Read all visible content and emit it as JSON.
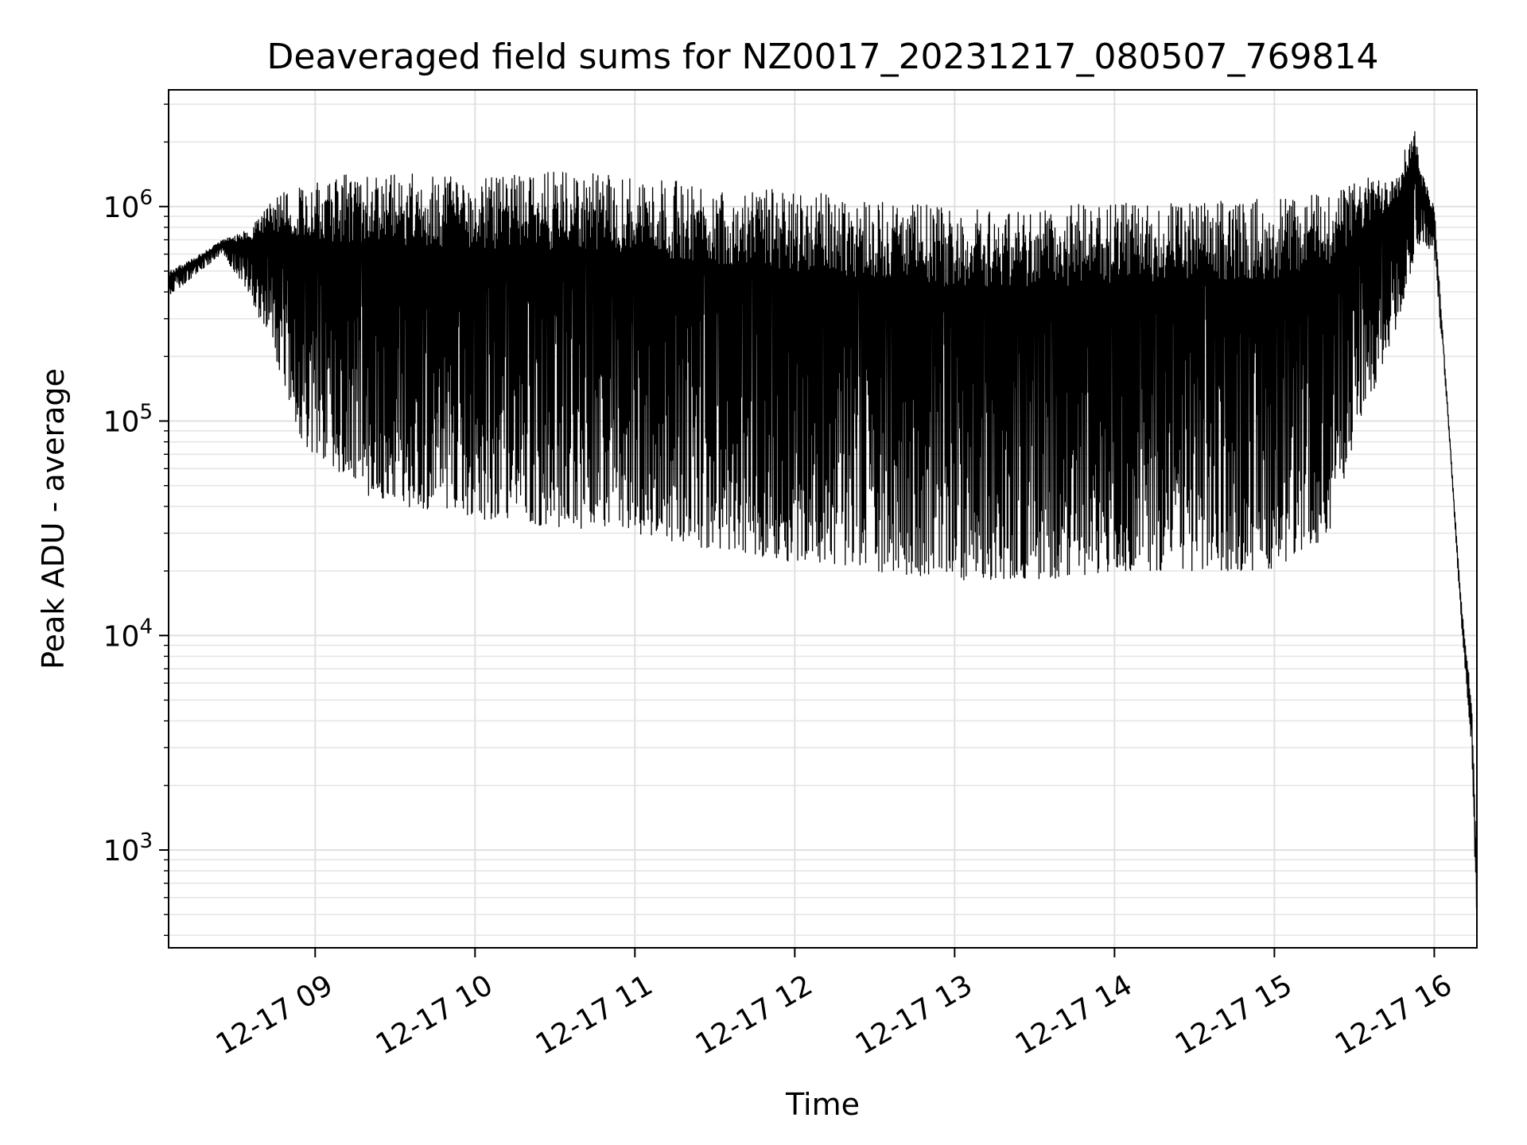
{
  "chart_data": {
    "type": "line",
    "title": "Deaveraged field sums for NZ0017_20231217_080507_769814",
    "xlabel": "Time",
    "ylabel": "Peak ADU - average",
    "y_scale": "log",
    "ylim": [
      350,
      3500000
    ],
    "xlim": [
      "2023-12-17 08:05",
      "2023-12-17 16:16"
    ],
    "x_ticks": [
      "2023-12-17 09:00",
      "2023-12-17 10:00",
      "2023-12-17 11:00",
      "2023-12-17 12:00",
      "2023-12-17 13:00",
      "2023-12-17 14:00",
      "2023-12-17 15:00",
      "2023-12-17 16:00"
    ],
    "x_tick_labels": [
      "12-17 09",
      "12-17 10",
      "12-17 11",
      "12-17 12",
      "12-17 13",
      "12-17 14",
      "12-17 15",
      "12-17 16"
    ],
    "y_ticks": [
      1000,
      10000,
      100000,
      1000000
    ],
    "y_tick_labels": [
      {
        "base": "10",
        "exp": "3"
      },
      {
        "base": "10",
        "exp": "4"
      },
      {
        "base": "10",
        "exp": "5"
      },
      {
        "base": "10",
        "exp": "6"
      }
    ],
    "grid": "both",
    "line_color": "#000000",
    "series": [
      {
        "note_free_envelope": true,
        "x": [
          "2023-12-17 08:05",
          "2023-12-17 08:15",
          "2023-12-17 08:25",
          "2023-12-17 08:35",
          "2023-12-17 08:45",
          "2023-12-17 08:55",
          "2023-12-17 09:10",
          "2023-12-17 09:30",
          "2023-12-17 10:00",
          "2023-12-17 10:30",
          "2023-12-17 11:00",
          "2023-12-17 11:30",
          "2023-12-17 12:00",
          "2023-12-17 12:30",
          "2023-12-17 13:00",
          "2023-12-17 13:30",
          "2023-12-17 14:00",
          "2023-12-17 14:30",
          "2023-12-17 15:00",
          "2023-12-17 15:20",
          "2023-12-17 15:30",
          "2023-12-17 15:45",
          "2023-12-17 15:53",
          "2023-12-17 15:55",
          "2023-12-17 16:00",
          "2023-12-17 16:05",
          "2023-12-17 16:10",
          "2023-12-17 16:14",
          "2023-12-17 16:16"
        ],
        "upper": [
          500000,
          580000,
          700000,
          800000,
          1100000,
          1300000,
          1400000,
          1450000,
          1400000,
          1450000,
          1400000,
          1250000,
          1200000,
          1100000,
          1000000,
          1000000,
          1050000,
          1050000,
          1100000,
          1200000,
          1300000,
          1500000,
          2400000,
          1500000,
          1000000,
          120000,
          15000,
          5000,
          900
        ],
        "lower": [
          380000,
          480000,
          600000,
          400000,
          200000,
          80000,
          50000,
          40000,
          35000,
          32000,
          30000,
          25000,
          22000,
          20000,
          18000,
          18000,
          20000,
          20000,
          20000,
          28000,
          80000,
          250000,
          600000,
          700000,
          600000,
          110000,
          12000,
          3000,
          450
        ]
      }
    ]
  }
}
